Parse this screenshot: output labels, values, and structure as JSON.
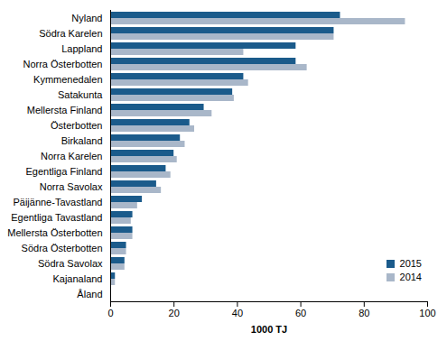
{
  "chart_data": {
    "type": "bar",
    "orientation": "horizontal",
    "xlabel": "1000 TJ",
    "categories": [
      "Nyland",
      "Södra Karelen",
      "Lappland",
      "Norra Österbotten",
      "Kymmenedalen",
      "Satakunta",
      "Mellersta Finland",
      "Österbotten",
      "Birkaland",
      "Norra Karelen",
      "Egentliga Finland",
      "Norra Savolax",
      "Päijänne-Tavastland",
      "Egentliga Tavastland",
      "Mellersta Österbotten",
      "Södra Österbotten",
      "Södra Savolax",
      "Kajanaland",
      "Åland"
    ],
    "series": [
      {
        "name": "2015",
        "color": "#1b5b8b",
        "values": [
          72.5,
          70.5,
          58.5,
          58.5,
          42,
          38.5,
          29.5,
          25,
          22,
          20,
          17.5,
          14.5,
          10,
          7,
          7,
          5,
          4.5,
          1.5,
          0.1
        ]
      },
      {
        "name": "2014",
        "color": "#a9b7c9",
        "values": [
          93,
          70.5,
          42,
          62,
          43.5,
          39,
          32,
          26.5,
          23.5,
          21,
          19,
          16,
          8.5,
          6.5,
          7,
          5,
          4.5,
          1.5,
          0.1
        ]
      }
    ],
    "xlim": [
      0,
      100
    ],
    "xticks": [
      0,
      20,
      40,
      60,
      80,
      100
    ],
    "grid": false,
    "legend": "bottom-right"
  }
}
